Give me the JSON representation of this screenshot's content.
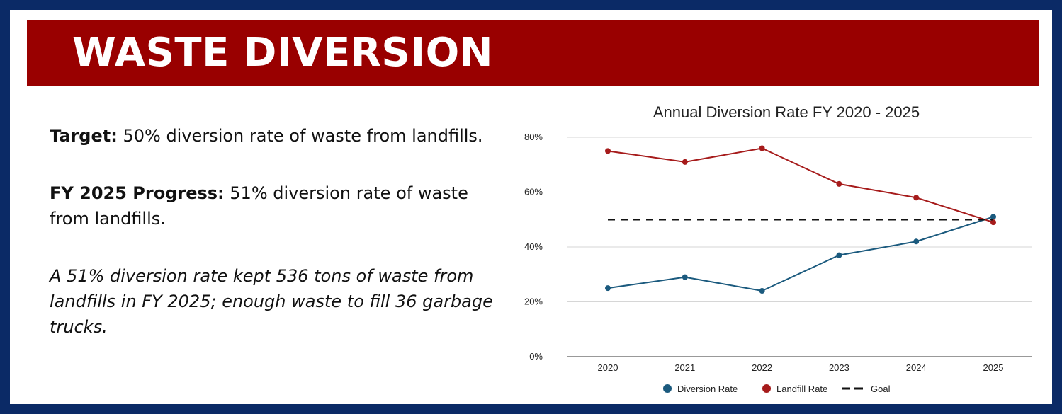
{
  "header": {
    "title": "WASTE DIVERSION"
  },
  "summary": {
    "target_label": "Target:",
    "target_text": " 50% diversion rate of waste from landfills.",
    "progress_label": "FY 2025 Progress:",
    "progress_text": " 51% diversion rate of waste from landfills.",
    "note": "A 51% diversion rate kept 536 tons of waste from landfills in FY 2025; enough waste to fill 36 garbage trucks."
  },
  "colors": {
    "banner": "#990000",
    "frame": "#0b2a66",
    "diversion": "#1b5a7e",
    "landfill": "#a61b1b",
    "goal": "#111111"
  },
  "chart_data": {
    "type": "line",
    "title": "Annual Diversion Rate FY 2020 - 2025",
    "categories": [
      "2020",
      "2021",
      "2022",
      "2023",
      "2024",
      "2025"
    ],
    "ylim": [
      0,
      80
    ],
    "yticks": [
      0,
      20,
      40,
      60,
      80
    ],
    "ytick_labels": [
      "0%",
      "20%",
      "40%",
      "60%",
      "80%"
    ],
    "grid": true,
    "legend_position": "bottom",
    "series": [
      {
        "name": "Diversion Rate",
        "values": [
          25,
          29,
          24,
          37,
          42,
          51
        ],
        "style": "solid-with-markers",
        "color": "#1b5a7e"
      },
      {
        "name": "Landfill Rate",
        "values": [
          75,
          71,
          76,
          63,
          58,
          49
        ],
        "style": "solid-with-markers",
        "color": "#a61b1b"
      },
      {
        "name": "Goal",
        "values": [
          50,
          50,
          50,
          50,
          50,
          50
        ],
        "style": "dashed",
        "color": "#111111"
      }
    ]
  }
}
